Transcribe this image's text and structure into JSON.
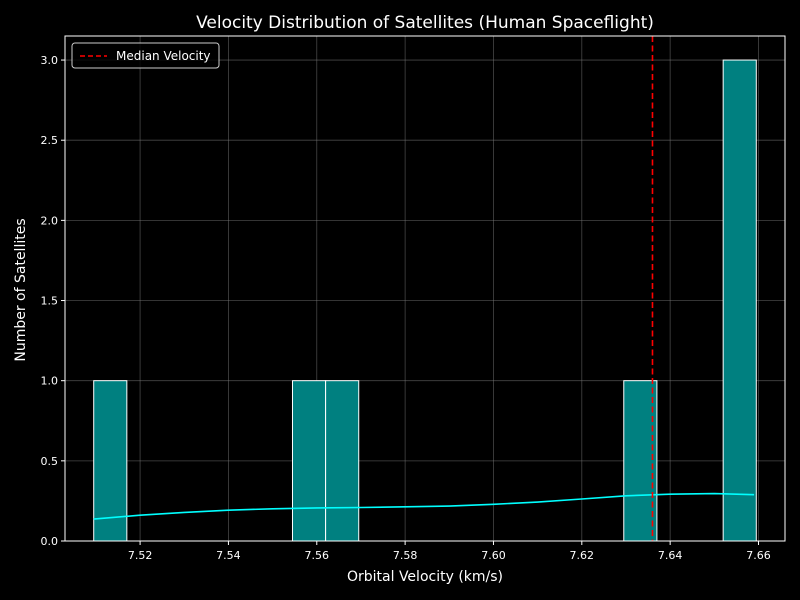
{
  "chart_data": {
    "type": "bar",
    "title": "Velocity Distribution of Satellites (Human Spaceflight)",
    "xlabel": "Orbital Velocity (km/s)",
    "ylabel": "Number of Satellites",
    "xlim": [
      7.503,
      7.666
    ],
    "ylim": [
      0,
      3.15
    ],
    "xticks": [
      "7.52",
      "7.54",
      "7.56",
      "7.58",
      "7.60",
      "7.62",
      "7.64",
      "7.66"
    ],
    "xtick_values": [
      7.52,
      7.54,
      7.56,
      7.58,
      7.6,
      7.62,
      7.64,
      7.66
    ],
    "yticks": [
      "0.0",
      "0.5",
      "1.0",
      "1.5",
      "2.0",
      "2.5",
      "3.0"
    ],
    "ytick_values": [
      0.0,
      0.5,
      1.0,
      1.5,
      2.0,
      2.5,
      3.0
    ],
    "grid": true,
    "legend_position": "top-left",
    "bin_width": 0.0075,
    "bins": [
      {
        "x0": 7.5095,
        "count": 1
      },
      {
        "x0": 7.5545,
        "count": 1
      },
      {
        "x0": 7.562,
        "count": 1
      },
      {
        "x0": 7.6295,
        "count": 1
      },
      {
        "x0": 7.652,
        "count": 3
      }
    ],
    "kde": {
      "x": [
        7.5095,
        7.52,
        7.53,
        7.54,
        7.55,
        7.56,
        7.57,
        7.58,
        7.59,
        7.6,
        7.61,
        7.62,
        7.63,
        7.64,
        7.65,
        7.659
      ],
      "y": [
        0.137,
        0.161,
        0.178,
        0.192,
        0.201,
        0.206,
        0.209,
        0.213,
        0.218,
        0.229,
        0.243,
        0.262,
        0.282,
        0.292,
        0.296,
        0.289
      ]
    },
    "median": {
      "value": 7.636,
      "label": "Median Velocity"
    },
    "colors": {
      "bar_fill": "#008080",
      "bar_edge": "#ffffff",
      "kde_line": "#00ffff",
      "median_line": "#ff0000",
      "grid": "#808080",
      "background": "#000000",
      "text": "#ffffff"
    }
  }
}
